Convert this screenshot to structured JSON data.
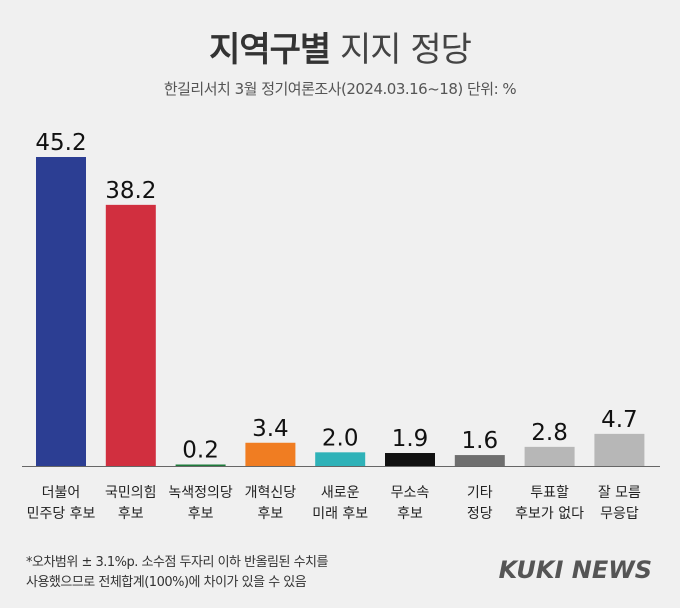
{
  "header": {
    "title_bold": "지역구별",
    "title_rest": "지지 정당",
    "subtitle": "한길리서치 3월 정기여론조사(2024.03.16~18) 단위: %"
  },
  "chart_data": {
    "type": "bar",
    "title": "지역구별 지지 정당",
    "subtitle": "한길리서치 3월 정기여론조사(2024.03.16~18) 단위: %",
    "categories": [
      [
        "더불어",
        "민주당 후보"
      ],
      [
        "국민의힘",
        "후보"
      ],
      [
        "녹색정의당",
        "후보"
      ],
      [
        "개혁신당",
        "후보"
      ],
      [
        "새로운",
        "미래 후보"
      ],
      [
        "무소속",
        "후보"
      ],
      [
        "기타",
        "정당"
      ],
      [
        "투표할",
        "후보가 없다"
      ],
      [
        "잘 모름",
        "무응답"
      ]
    ],
    "values": [
      45.2,
      38.2,
      0.2,
      3.4,
      2.0,
      1.9,
      1.6,
      2.8,
      4.7
    ],
    "value_labels": [
      "45.2",
      "38.2",
      "0.2",
      "3.4",
      "2.0",
      "1.9",
      "1.6",
      "2.8",
      "4.7"
    ],
    "colors": [
      "#2c3e93",
      "#d12f3f",
      "#1d7a3a",
      "#f07d22",
      "#2fb2b8",
      "#111111",
      "#6e6e6e",
      "#b7b7b7",
      "#b7b7b7"
    ],
    "ylim": [
      0,
      45.2
    ],
    "grid": false,
    "xlabel": "",
    "ylabel": ""
  },
  "footnote": {
    "line1": "*오차범위 ± 3.1%p. 소수점 두자리 이하 반올림된 수치를",
    "line2": "사용했으므로 전체합계(100%)에 차이가 있을 수 있음"
  },
  "brand": {
    "logo": "KUKI NEWS"
  }
}
